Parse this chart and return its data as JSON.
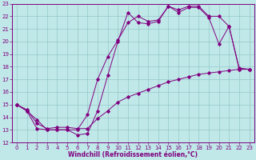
{
  "xlabel": "Windchill (Refroidissement éolien,°C)",
  "bg_color": "#c0e8e8",
  "grid_color": "#96c8c8",
  "line_color": "#800080",
  "spine_color": "#800080",
  "xlim": [
    -0.5,
    23.5
  ],
  "ylim": [
    12,
    23
  ],
  "xticks": [
    0,
    1,
    2,
    3,
    4,
    5,
    6,
    7,
    8,
    9,
    10,
    11,
    12,
    13,
    14,
    15,
    16,
    17,
    18,
    19,
    20,
    21,
    22,
    23
  ],
  "yticks": [
    12,
    13,
    14,
    15,
    16,
    17,
    18,
    19,
    20,
    21,
    22,
    23
  ],
  "line1_x": [
    0,
    1,
    2,
    3,
    4,
    5,
    6,
    7,
    8,
    9,
    10,
    11,
    12,
    13,
    14,
    15,
    16,
    17,
    18,
    19,
    20,
    21,
    22,
    23
  ],
  "line1_y": [
    15.0,
    14.5,
    13.1,
    13.0,
    13.0,
    13.0,
    12.6,
    12.7,
    14.5,
    17.3,
    20.0,
    22.3,
    21.5,
    21.4,
    21.6,
    22.8,
    22.3,
    22.7,
    22.7,
    21.9,
    19.8,
    21.2,
    17.8,
    17.8
  ],
  "line2_x": [
    0,
    1,
    2,
    3,
    4,
    5,
    6,
    7,
    8,
    9,
    10,
    11,
    12,
    13,
    14,
    15,
    16,
    17,
    18,
    19,
    20,
    21,
    22,
    23
  ],
  "line2_y": [
    15.0,
    14.5,
    13.8,
    13.0,
    13.0,
    13.0,
    13.0,
    14.2,
    17.0,
    18.8,
    20.1,
    21.5,
    22.0,
    21.6,
    21.7,
    22.8,
    22.5,
    22.8,
    22.8,
    22.0,
    22.0,
    21.2,
    17.9,
    17.8
  ],
  "line3_x": [
    0,
    1,
    2,
    3,
    4,
    5,
    6,
    7,
    8,
    9,
    10,
    11,
    12,
    13,
    14,
    15,
    16,
    17,
    18,
    19,
    20,
    21,
    22,
    23
  ],
  "line3_y": [
    15.0,
    14.6,
    13.5,
    13.1,
    13.2,
    13.2,
    13.1,
    13.1,
    13.9,
    14.5,
    15.2,
    15.6,
    15.9,
    16.2,
    16.5,
    16.8,
    17.0,
    17.2,
    17.4,
    17.5,
    17.6,
    17.7,
    17.8,
    17.8
  ],
  "tick_fontsize": 5,
  "label_fontsize": 5.5
}
